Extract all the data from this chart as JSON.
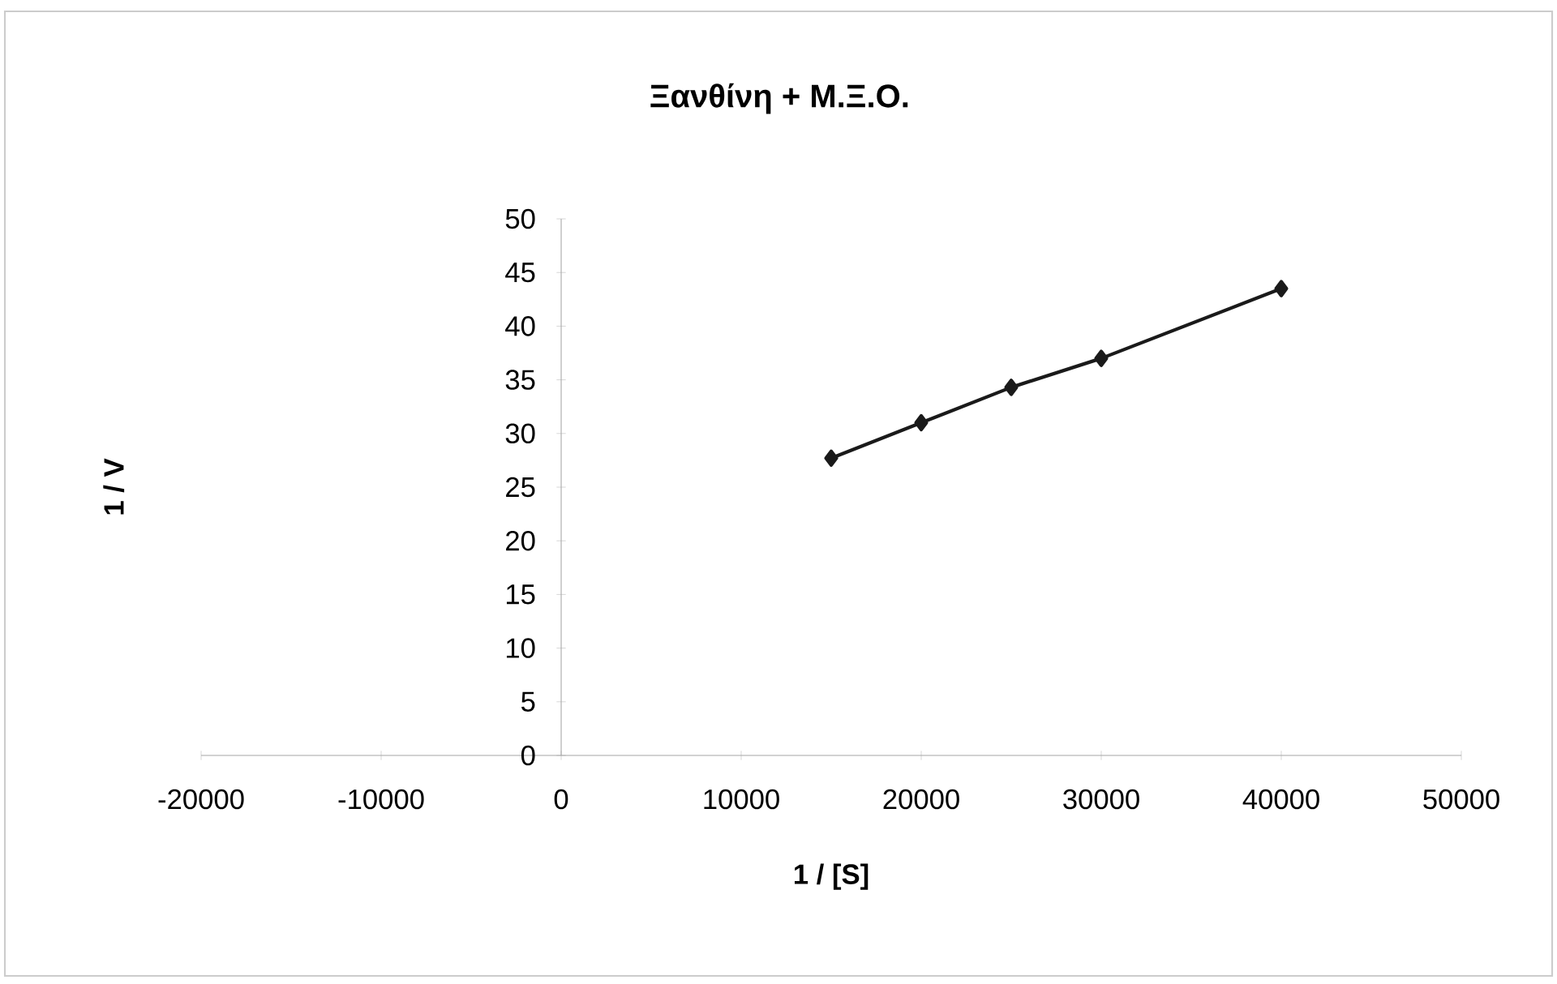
{
  "chart_data": {
    "type": "line",
    "title": "**Ξανθίνη + Μ.Ξ.Ο.**",
    "xlabel": "**1 / [S]**",
    "ylabel": "**1 / V**",
    "x": [
      15000,
      20000,
      25000,
      30000,
      40000
    ],
    "series": [
      {
        "color": "#1a1a1a",
        "values": [
          27.7,
          31.0,
          34.3,
          37.0,
          43.5
        ]
      }
    ],
    "marker": "diamond",
    "line_style": "solid",
    "xlim": [
      -20000,
      50000
    ],
    "xticks": [
      -20000,
      -10000,
      0,
      10000,
      20000,
      30000,
      40000,
      50000
    ],
    "ylim": [
      0,
      50
    ],
    "yticks": [
      0,
      5,
      10,
      15,
      20,
      25,
      30,
      35,
      40,
      45,
      50
    ]
  }
}
